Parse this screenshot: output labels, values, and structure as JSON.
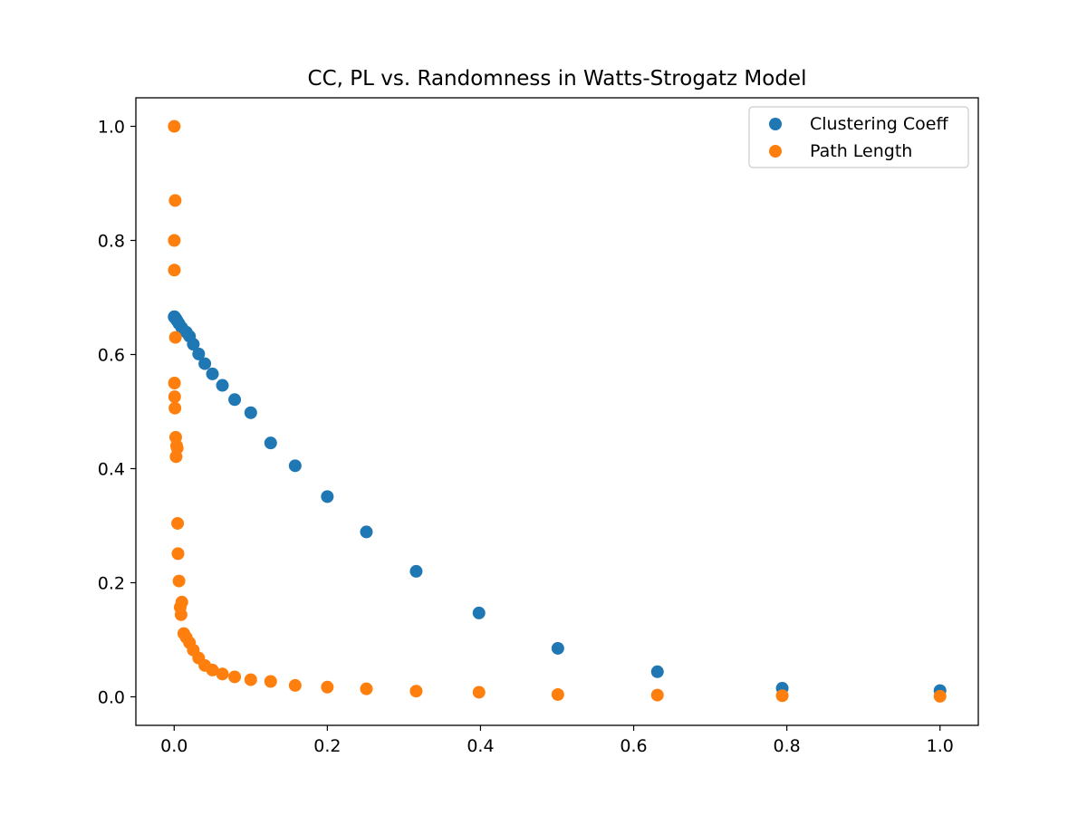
{
  "chart_data": {
    "type": "scatter",
    "title": "CC, PL vs. Randomness in Watts-Strogatz Model",
    "xlabel": "",
    "ylabel": "",
    "xlim": [
      -0.05,
      1.05
    ],
    "ylim": [
      -0.05,
      1.05
    ],
    "xticks": [
      0.0,
      0.2,
      0.4,
      0.6,
      0.8,
      1.0
    ],
    "xtick_labels": [
      "0.0",
      "0.2",
      "0.4",
      "0.6",
      "0.8",
      "1.0"
    ],
    "yticks": [
      0.0,
      0.2,
      0.4,
      0.6,
      0.8,
      1.0
    ],
    "ytick_labels": [
      "0.0",
      "0.2",
      "0.4",
      "0.6",
      "0.8",
      "1.0"
    ],
    "grid": false,
    "legend_position": "upper right",
    "series": [
      {
        "name": "Clustering Coeff",
        "color": "#1f77b4",
        "x": [
          0.0001,
          0.00016,
          0.00025,
          0.0004,
          0.00063,
          0.001,
          0.0016,
          0.0025,
          0.004,
          0.0063,
          0.01,
          0.016,
          0.02,
          0.025,
          0.032,
          0.04,
          0.05,
          0.063,
          0.079,
          0.1,
          0.126,
          0.158,
          0.2,
          0.251,
          0.316,
          0.398,
          0.501,
          0.631,
          0.794,
          1.0
        ],
        "y": [
          0.666,
          0.666,
          0.666,
          0.666,
          0.665,
          0.665,
          0.664,
          0.662,
          0.659,
          0.654,
          0.647,
          0.639,
          0.632,
          0.618,
          0.601,
          0.584,
          0.566,
          0.546,
          0.521,
          0.498,
          0.445,
          0.405,
          0.351,
          0.289,
          0.22,
          0.147,
          0.085,
          0.044,
          0.015,
          0.011
        ]
      },
      {
        "name": "Path Length",
        "color": "#ff7f0e",
        "x": [
          0.0001,
          0.00016,
          0.00025,
          0.0004,
          0.00063,
          0.001,
          0.0013,
          0.0016,
          0.002,
          0.0025,
          0.0032,
          0.004,
          0.0045,
          0.005,
          0.0063,
          0.0079,
          0.009,
          0.01,
          0.0126,
          0.0158,
          0.02,
          0.025,
          0.032,
          0.04,
          0.05,
          0.063,
          0.079,
          0.1,
          0.126,
          0.158,
          0.2,
          0.251,
          0.316,
          0.398,
          0.501,
          0.631,
          0.794,
          1.0
        ],
        "y": [
          1.0,
          0.8,
          0.748,
          0.55,
          0.526,
          0.506,
          0.87,
          0.63,
          0.455,
          0.421,
          0.44,
          0.436,
          0.304,
          0.251,
          0.203,
          0.157,
          0.144,
          0.166,
          0.111,
          0.104,
          0.095,
          0.082,
          0.068,
          0.055,
          0.047,
          0.04,
          0.035,
          0.03,
          0.027,
          0.02,
          0.017,
          0.014,
          0.01,
          0.008,
          0.004,
          0.003,
          0.002,
          0.001
        ]
      }
    ]
  }
}
